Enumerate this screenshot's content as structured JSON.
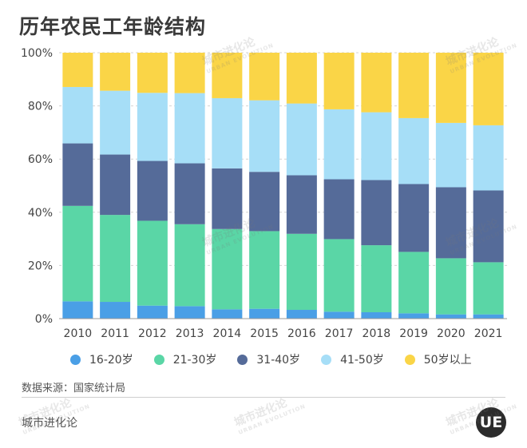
{
  "title": "历年农民工年龄结构",
  "source": "数据来源：国家统计局",
  "brand": "城市进化论",
  "logo_text": "UE",
  "watermark": {
    "cn": "城市进化论",
    "en": "URBAN EVOLUTION"
  },
  "colors": {
    "16-20岁": "#4a9fe6",
    "21-30岁": "#5ad6a6",
    "31-40岁": "#556b99",
    "41-50岁": "#a6def7",
    "50岁以上": "#fad547"
  },
  "chart_data": {
    "type": "bar",
    "stacked": true,
    "categories": [
      "2010",
      "2011",
      "2012",
      "2013",
      "2014",
      "2015",
      "2016",
      "2017",
      "2018",
      "2019",
      "2020",
      "2021"
    ],
    "y_ticks": [
      "0%",
      "20%",
      "40%",
      "60%",
      "80%",
      "100%"
    ],
    "ylim": [
      0,
      100
    ],
    "series": [
      {
        "name": "16-20岁",
        "values": [
          6.5,
          6.3,
          4.9,
          4.7,
          3.5,
          3.7,
          3.3,
          2.6,
          2.4,
          2.0,
          1.6,
          1.6
        ]
      },
      {
        "name": "21-30岁",
        "values": [
          35.9,
          32.7,
          31.9,
          30.8,
          30.2,
          29.2,
          28.6,
          27.3,
          25.2,
          23.1,
          21.1,
          19.6
        ]
      },
      {
        "name": "31-40岁",
        "values": [
          23.5,
          22.7,
          22.5,
          22.9,
          22.8,
          22.3,
          22.0,
          22.5,
          24.5,
          25.5,
          26.7,
          27.0
        ]
      },
      {
        "name": "41-50岁",
        "values": [
          21.2,
          24.0,
          25.6,
          26.4,
          26.4,
          26.9,
          27.0,
          26.3,
          25.5,
          24.8,
          24.2,
          24.5
        ]
      },
      {
        "name": "50岁以上",
        "values": [
          12.9,
          14.3,
          15.1,
          15.2,
          17.1,
          17.9,
          19.1,
          21.3,
          22.4,
          24.6,
          26.4,
          27.3
        ]
      }
    ],
    "legend_position": "bottom"
  }
}
